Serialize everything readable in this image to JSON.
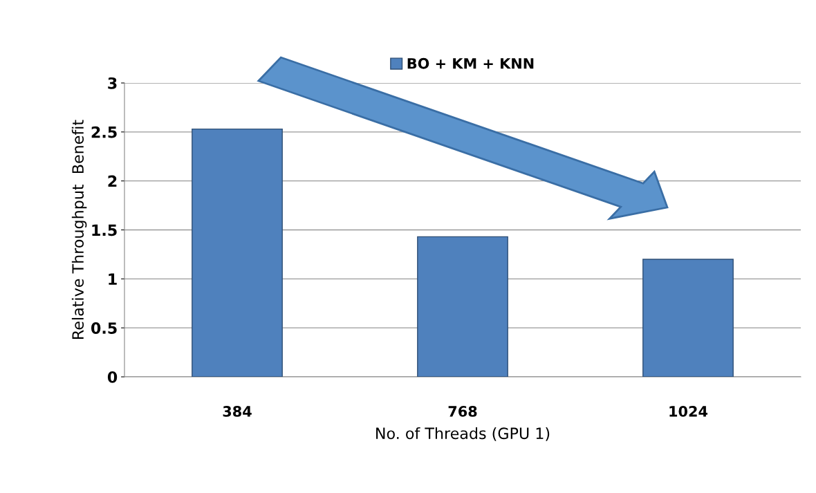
{
  "chart_data": {
    "type": "bar",
    "categories": [
      "384",
      "768",
      "1024"
    ],
    "series": [
      {
        "name": "BO + KM + KNN",
        "color": "#4f81bd",
        "values": [
          2.53,
          1.43,
          1.2
        ]
      }
    ],
    "xlabel": "No. of Threads (GPU 1)",
    "ylabel": "Relative Throughput  Benefit",
    "ylim": [
      0,
      3
    ],
    "yticks": [
      0,
      0.5,
      1,
      1.5,
      2,
      2.5,
      3
    ],
    "grid": "y",
    "legend": "top"
  }
}
